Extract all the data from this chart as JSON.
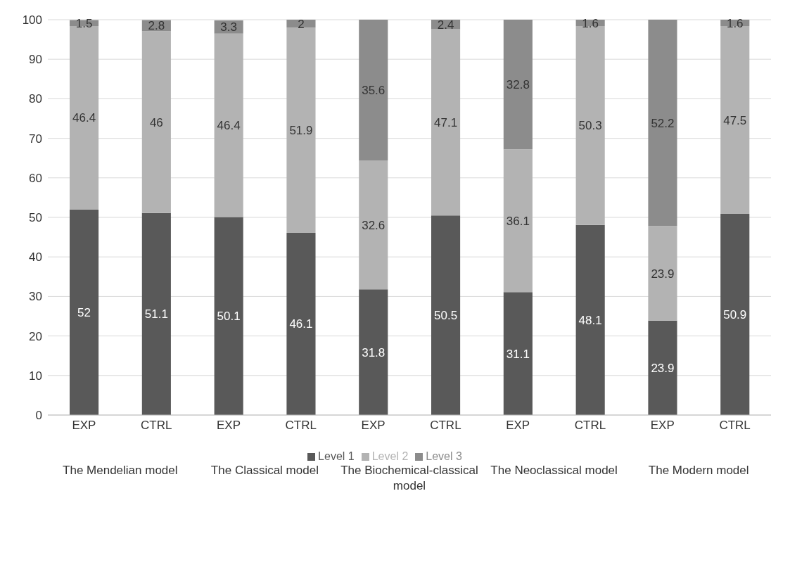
{
  "chart_data": {
    "type": "bar",
    "stacked": true,
    "categories": [
      "EXP",
      "CTRL",
      "EXP",
      "CTRL",
      "EXP",
      "CTRL",
      "EXP",
      "CTRL",
      "EXP",
      "CTRL"
    ],
    "annotations": [
      "The Mendelian model",
      "The Classical model",
      "The Biochemical-classical model",
      "The Neoclassical model",
      "The Modern model"
    ],
    "series": [
      {
        "name": "Level 1",
        "color": "#595959",
        "values": [
          52,
          51.1,
          50.1,
          46.1,
          31.8,
          50.5,
          31.1,
          48.1,
          23.9,
          50.9
        ]
      },
      {
        "name": "Level 2",
        "color": "#b3b3b3",
        "values": [
          46.4,
          46,
          46.4,
          51.9,
          32.6,
          47.1,
          36.1,
          50.3,
          23.9,
          47.5
        ]
      },
      {
        "name": "Level 3",
        "color": "#8c8c8c",
        "values": [
          1.5,
          2.8,
          3.3,
          2,
          35.6,
          2.4,
          32.8,
          1.6,
          52.2,
          1.6
        ]
      }
    ],
    "ylim": [
      0,
      100
    ],
    "yticks": [
      0,
      10,
      20,
      30,
      40,
      50,
      60,
      70,
      80,
      90,
      100
    ],
    "grid": "y",
    "legend": "bottom",
    "data_labels": true
  }
}
